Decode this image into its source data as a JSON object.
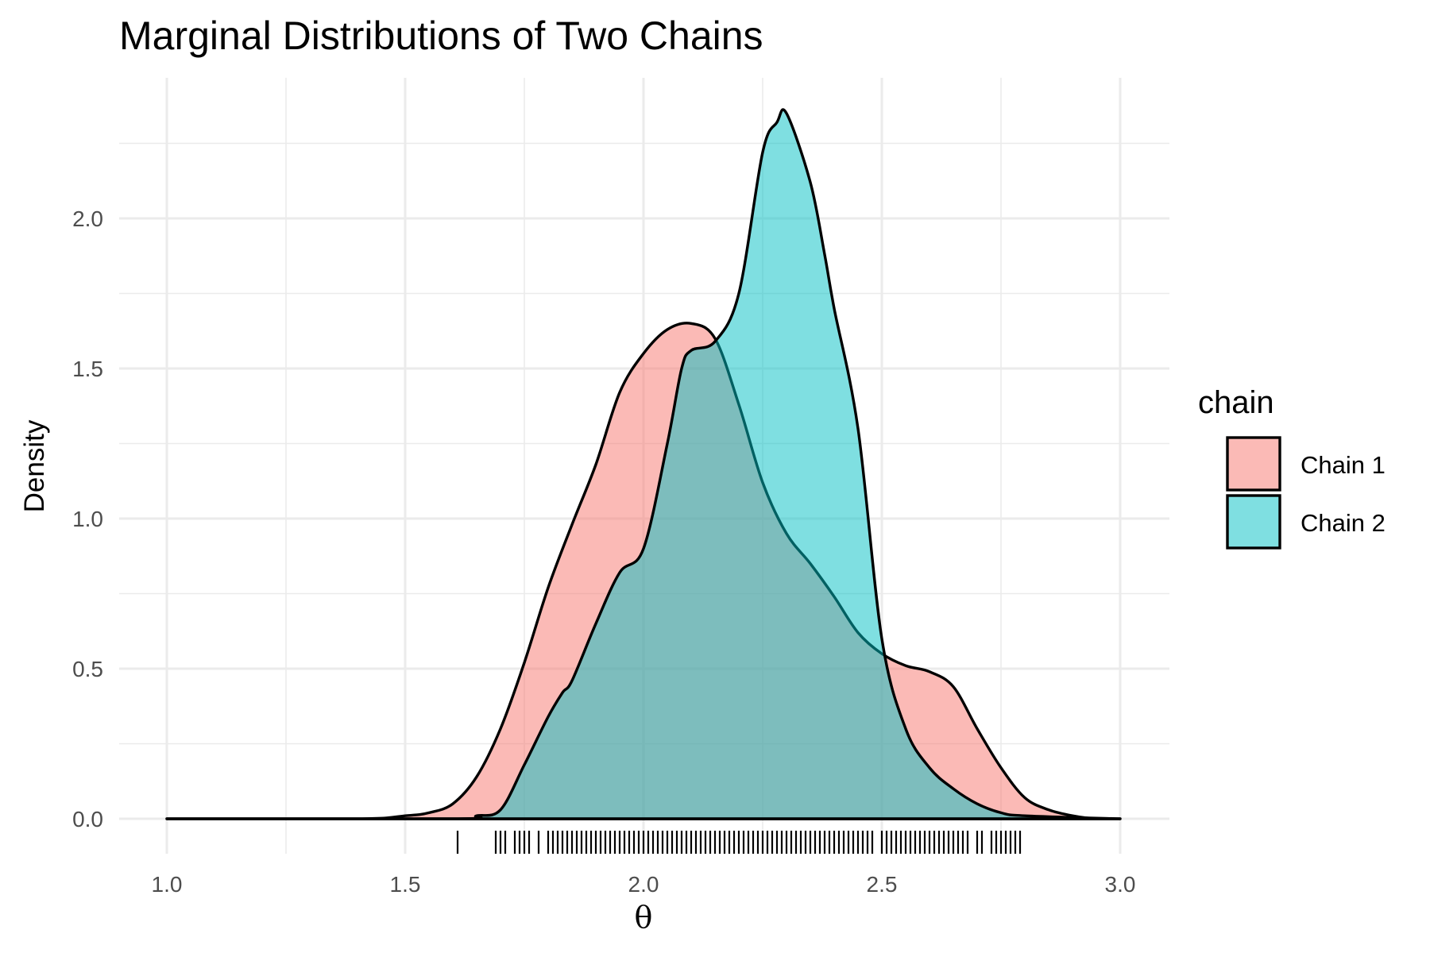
{
  "chart_data": {
    "type": "area",
    "subtype": "density",
    "title": "Marginal Distributions of Two Chains",
    "xlabel": "θ",
    "ylabel": "Density",
    "xlim": [
      1.0,
      3.0
    ],
    "ylim": [
      0,
      2.35
    ],
    "x_ticks": [
      "1.0",
      "1.5",
      "2.0",
      "2.5",
      "3.0"
    ],
    "y_ticks": [
      "0.0",
      "0.5",
      "1.0",
      "1.5",
      "2.0"
    ],
    "x_tick_values": [
      1.0,
      1.5,
      2.0,
      2.5,
      3.0
    ],
    "y_tick_values": [
      0,
      0.5,
      1.0,
      1.5,
      2.0
    ],
    "grid": true,
    "legend": {
      "title": "chain",
      "position": "right"
    },
    "series": [
      {
        "name": "Chain 1",
        "color": "#F8766D",
        "x": [
          1.0,
          1.4,
          1.5,
          1.55,
          1.6,
          1.65,
          1.7,
          1.75,
          1.8,
          1.85,
          1.9,
          1.95,
          2.0,
          2.05,
          2.1,
          2.15,
          2.2,
          2.25,
          2.3,
          2.35,
          2.4,
          2.45,
          2.5,
          2.55,
          2.6,
          2.65,
          2.7,
          2.75,
          2.8,
          2.85,
          2.9,
          2.95,
          3.0
        ],
        "y": [
          0.0,
          0.0,
          0.01,
          0.02,
          0.05,
          0.14,
          0.3,
          0.52,
          0.77,
          0.98,
          1.18,
          1.42,
          1.55,
          1.63,
          1.65,
          1.6,
          1.38,
          1.12,
          0.95,
          0.85,
          0.74,
          0.62,
          0.55,
          0.51,
          0.49,
          0.44,
          0.3,
          0.17,
          0.07,
          0.03,
          0.01,
          0.0,
          0.0
        ]
      },
      {
        "name": "Chain 2",
        "color": "#00BFC4",
        "x": [
          1.0,
          1.6,
          1.65,
          1.7,
          1.75,
          1.8,
          1.83,
          1.85,
          1.9,
          1.95,
          2.0,
          2.05,
          2.08,
          2.1,
          2.15,
          2.2,
          2.25,
          2.28,
          2.3,
          2.35,
          2.38,
          2.4,
          2.45,
          2.5,
          2.55,
          2.6,
          2.65,
          2.7,
          2.75,
          2.8,
          3.0
        ],
        "y": [
          0.0,
          0.0,
          0.01,
          0.03,
          0.18,
          0.34,
          0.42,
          0.46,
          0.65,
          0.82,
          0.9,
          1.25,
          1.5,
          1.56,
          1.59,
          1.75,
          2.22,
          2.32,
          2.35,
          2.12,
          1.88,
          1.7,
          1.3,
          0.6,
          0.3,
          0.17,
          0.1,
          0.05,
          0.02,
          0.01,
          0.0
        ]
      }
    ],
    "rug": [
      1.61,
      1.69,
      1.7,
      1.71,
      1.73,
      1.74,
      1.75,
      1.76,
      1.78,
      1.8,
      1.81,
      1.82,
      1.83,
      1.84,
      1.85,
      1.86,
      1.87,
      1.88,
      1.89,
      1.9,
      1.91,
      1.92,
      1.93,
      1.94,
      1.95,
      1.96,
      1.97,
      1.98,
      1.99,
      2.0,
      2.01,
      2.02,
      2.03,
      2.04,
      2.05,
      2.06,
      2.07,
      2.08,
      2.09,
      2.1,
      2.11,
      2.12,
      2.13,
      2.14,
      2.15,
      2.16,
      2.17,
      2.18,
      2.19,
      2.2,
      2.21,
      2.22,
      2.23,
      2.24,
      2.25,
      2.26,
      2.27,
      2.28,
      2.29,
      2.3,
      2.31,
      2.32,
      2.33,
      2.34,
      2.35,
      2.36,
      2.37,
      2.38,
      2.39,
      2.4,
      2.41,
      2.42,
      2.43,
      2.44,
      2.45,
      2.46,
      2.47,
      2.48,
      2.5,
      2.51,
      2.52,
      2.53,
      2.54,
      2.55,
      2.56,
      2.57,
      2.58,
      2.59,
      2.6,
      2.61,
      2.62,
      2.63,
      2.64,
      2.65,
      2.66,
      2.67,
      2.68,
      2.7,
      2.71,
      2.73,
      2.74,
      2.75,
      2.76,
      2.77,
      2.78,
      2.79
    ]
  }
}
